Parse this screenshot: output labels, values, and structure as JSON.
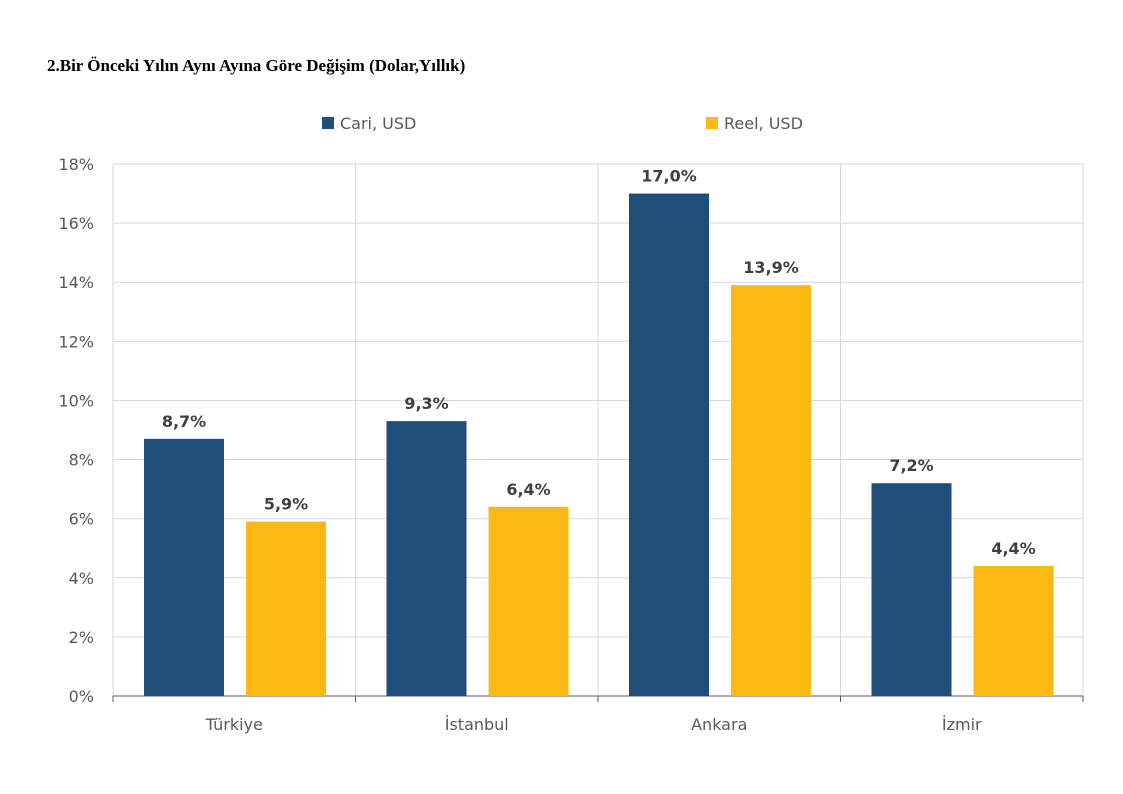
{
  "title": "2.Bir Önceki Yılın Aynı Ayına Göre Değişim (Dolar,Yıllık)",
  "chart_data": {
    "type": "bar",
    "title": "",
    "xlabel": "",
    "ylabel": "",
    "categories": [
      "Türkiye",
      "İstanbul",
      "Ankara",
      "İzmir"
    ],
    "series": [
      {
        "name": "Cari, USD",
        "values": [
          8.7,
          9.3,
          17.0,
          7.2
        ],
        "labels": [
          "8,7%",
          "9,3%",
          "17,0%",
          "7,2%"
        ],
        "color": "#1f4e79"
      },
      {
        "name": "Reel, USD",
        "values": [
          5.9,
          6.4,
          13.9,
          4.4
        ],
        "labels": [
          "5,9%",
          "6,4%",
          "13,9%",
          "4,4%"
        ],
        "color": "#fdb913"
      }
    ],
    "ylim": [
      0,
      18
    ],
    "yticks": [
      0,
      2,
      4,
      6,
      8,
      10,
      12,
      14,
      16,
      18
    ],
    "ytick_labels": [
      "0%",
      "2%",
      "4%",
      "6%",
      "8%",
      "10%",
      "12%",
      "14%",
      "16%",
      "18%"
    ],
    "grid": true,
    "legend": "top-center",
    "data_labels": true
  }
}
